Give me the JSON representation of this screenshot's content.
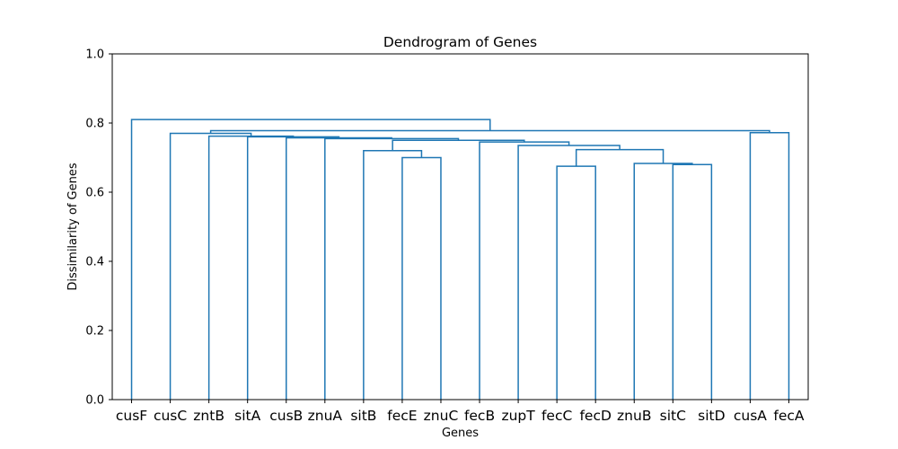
{
  "chart_data": {
    "type": "dendrogram",
    "title": "Dendrogram of Genes",
    "xlabel": "Genes",
    "ylabel": "Dissimilarity of Genes",
    "ylim": [
      0,
      1.0
    ],
    "yticks": [
      "0.0",
      "0.2",
      "0.4",
      "0.6",
      "0.8",
      "1.0"
    ],
    "grid": false,
    "color": "#1f77b4",
    "leaves": [
      "cusF",
      "cusC",
      "zntB",
      "sitA",
      "cusB",
      "znuA",
      "sitB",
      "fecE",
      "znuC",
      "fecB",
      "zupT",
      "fecC",
      "fecD",
      "znuB",
      "sitC",
      "sitD",
      "cusA",
      "fecA"
    ],
    "links": [
      {
        "a": "fecC",
        "b": "fecD",
        "height": 0.675
      },
      {
        "a": "sitC",
        "b": "sitD",
        "height": 0.68
      },
      {
        "a": "znuB",
        "b": "C2",
        "height": 0.683
      },
      {
        "a": "fecE",
        "b": "znuC",
        "height": 0.7
      },
      {
        "a": "sitB",
        "b": "C4",
        "height": 0.72
      },
      {
        "a": "C1",
        "b": "C3",
        "height": 0.723
      },
      {
        "a": "zupT",
        "b": "C6",
        "height": 0.735
      },
      {
        "a": "fecB",
        "b": "C7",
        "height": 0.745
      },
      {
        "a": "C5",
        "b": "C8",
        "height": 0.75
      },
      {
        "a": "znuA",
        "b": "C9",
        "height": 0.755
      },
      {
        "a": "cusB",
        "b": "C10",
        "height": 0.757
      },
      {
        "a": "sitA",
        "b": "C11",
        "height": 0.76
      },
      {
        "a": "zntB",
        "b": "C12",
        "height": 0.762
      },
      {
        "a": "cusC",
        "b": "C13",
        "height": 0.77
      },
      {
        "a": "cusA",
        "b": "fecA",
        "height": 0.772
      },
      {
        "a": "C14",
        "b": "C15",
        "height": 0.778
      },
      {
        "a": "cusF",
        "b": "C16",
        "height": 0.81
      }
    ]
  }
}
